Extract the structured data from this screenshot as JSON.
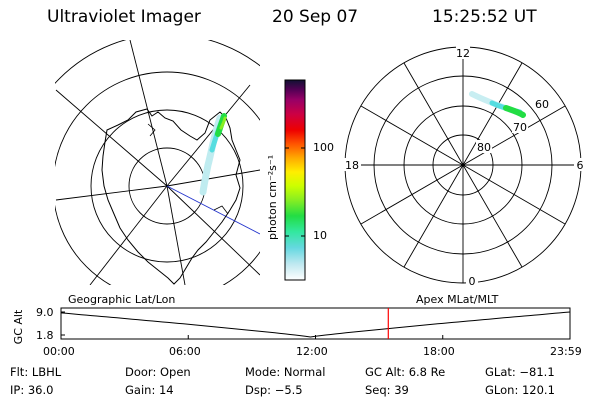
{
  "header": {
    "title": "Ultraviolet Imager",
    "date": "20 Sep 07",
    "time": "15:25:52 UT"
  },
  "colorbar": {
    "unit_label": "photon cm⁻²s⁻¹",
    "ticks": [
      "100",
      "10"
    ],
    "scale": "log",
    "colors": [
      "#ffffff",
      "#bfe8f0",
      "#66d8e0",
      "#33e8a0",
      "#22dd44",
      "#88ee22",
      "#ccff00",
      "#ffee00",
      "#ffaa00",
      "#ff5500",
      "#ee0000",
      "#cc0044",
      "#990066",
      "#550055",
      "#111133"
    ]
  },
  "polar_plot": {
    "mlt_labels": {
      "top": "12",
      "left": "18",
      "right": "6",
      "bottom": "0"
    },
    "lat_labels": [
      "60",
      "70",
      "80"
    ]
  },
  "timeline": {
    "y_axis_label": "GC Alt",
    "y_ticks": [
      "9.0",
      "1.8"
    ],
    "left_label": "Geographic Lat/Lon",
    "right_label": "Apex MLat/MLT",
    "x_ticks": [
      "00:00",
      "06:00",
      "12:00",
      "18:00",
      "23:59"
    ],
    "current_time_fraction": 0.643,
    "marker_color": "#ff0000"
  },
  "info": {
    "row1": [
      {
        "label": "Flt:",
        "value": "LBHL"
      },
      {
        "label": "Door:",
        "value": "Open"
      },
      {
        "label": "Mode:",
        "value": "Normal"
      },
      {
        "label": "GC Alt:",
        "value": "6.8 Re"
      },
      {
        "label": "GLat:",
        "value": "−81.1"
      }
    ],
    "row2": [
      {
        "label": "IP:",
        "value": "36.0"
      },
      {
        "label": "Gain:",
        "value": "14"
      },
      {
        "label": "Dsp:",
        "value": "−5.5"
      },
      {
        "label": "Seq:",
        "value": "39"
      },
      {
        "label": "GLon:",
        "value": "120.1"
      }
    ]
  }
}
